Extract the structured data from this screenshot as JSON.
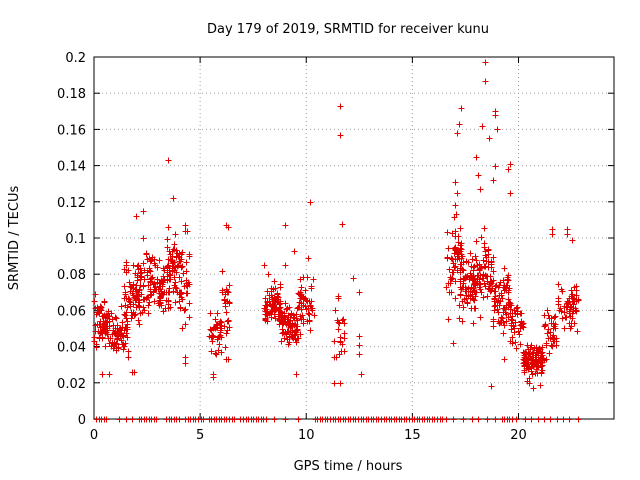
{
  "chart_data": {
    "type": "scatter",
    "title": "Day 179 of 2019, SRMTID for receiver kunu",
    "xlabel": "GPS time / hours",
    "ylabel": "SRMTID / TECUs",
    "xlim": [
      0,
      24.5
    ],
    "ylim": [
      0,
      0.2
    ],
    "xticks": [
      0,
      5,
      10,
      15,
      20
    ],
    "xtick_labels": [
      "0",
      "5",
      "10",
      "15",
      "20"
    ],
    "yticks": [
      0,
      0.02,
      0.04,
      0.06,
      0.08,
      0.1,
      0.12,
      0.14,
      0.16,
      0.18,
      0.2
    ],
    "ytick_labels": [
      "0",
      "0.02",
      "0.04",
      "0.06",
      "0.08",
      "0.1",
      "0.12",
      "0.14",
      "0.16",
      "0.18",
      "0.2"
    ],
    "grid": true,
    "marker": "+",
    "color": "#e00000",
    "series": [
      {
        "name": "SRMTID",
        "clusters": [
          {
            "x": [
              0.0,
              0.8
            ],
            "y": [
              0.035,
              0.07
            ],
            "n": 70
          },
          {
            "x": [
              0.8,
              1.6
            ],
            "y": [
              0.03,
              0.065
            ],
            "n": 60
          },
          {
            "x": [
              1.4,
              2.2
            ],
            "y": [
              0.04,
              0.09
            ],
            "n": 60
          },
          {
            "x": [
              2.0,
              2.8
            ],
            "y": [
              0.05,
              0.1
            ],
            "n": 60
          },
          {
            "x": [
              2.8,
              3.6
            ],
            "y": [
              0.05,
              0.1
            ],
            "n": 60
          },
          {
            "x": [
              3.4,
              4.2
            ],
            "y": [
              0.06,
              0.105
            ],
            "n": 60
          },
          {
            "x": [
              4.0,
              4.6
            ],
            "y": [
              0.04,
              0.1
            ],
            "n": 30
          },
          {
            "x": [
              5.4,
              6.0
            ],
            "y": [
              0.03,
              0.065
            ],
            "n": 40
          },
          {
            "x": [
              6.0,
              6.4
            ],
            "y": [
              0.03,
              0.09
            ],
            "n": 25
          },
          {
            "x": [
              8.0,
              8.8
            ],
            "y": [
              0.045,
              0.08
            ],
            "n": 80
          },
          {
            "x": [
              8.8,
              9.6
            ],
            "y": [
              0.035,
              0.07
            ],
            "n": 80
          },
          {
            "x": [
              9.6,
              10.4
            ],
            "y": [
              0.04,
              0.085
            ],
            "n": 50
          },
          {
            "x": [
              11.3,
              11.8
            ],
            "y": [
              0.025,
              0.065
            ],
            "n": 20
          },
          {
            "x": [
              16.6,
              17.4
            ],
            "y": [
              0.06,
              0.12
            ],
            "n": 60
          },
          {
            "x": [
              17.2,
              18.0
            ],
            "y": [
              0.045,
              0.1
            ],
            "n": 70
          },
          {
            "x": [
              17.8,
              18.8
            ],
            "y": [
              0.05,
              0.11
            ],
            "n": 80
          },
          {
            "x": [
              18.8,
              19.6
            ],
            "y": [
              0.045,
              0.085
            ],
            "n": 70
          },
          {
            "x": [
              19.6,
              20.2
            ],
            "y": [
              0.035,
              0.07
            ],
            "n": 40
          },
          {
            "x": [
              20.2,
              21.2
            ],
            "y": [
              0.02,
              0.045
            ],
            "n": 110
          },
          {
            "x": [
              21.2,
              21.8
            ],
            "y": [
              0.03,
              0.065
            ],
            "n": 40
          },
          {
            "x": [
              21.8,
              22.8
            ],
            "y": [
              0.045,
              0.08
            ],
            "n": 60
          }
        ],
        "points": [
          {
            "x": 0.0,
            "y": 0.065
          },
          {
            "x": 0.05,
            "y": 0.069
          },
          {
            "x": 0.1,
            "y": 0.04
          },
          {
            "x": 0.4,
            "y": 0.025
          },
          {
            "x": 0.7,
            "y": 0.025
          },
          {
            "x": 1.5,
            "y": 0.081
          },
          {
            "x": 1.5,
            "y": 0.087
          },
          {
            "x": 1.6,
            "y": 0.034
          },
          {
            "x": 1.8,
            "y": 0.026
          },
          {
            "x": 1.9,
            "y": 0.026
          },
          {
            "x": 2.0,
            "y": 0.112
          },
          {
            "x": 2.3,
            "y": 0.115
          },
          {
            "x": 2.3,
            "y": 0.1
          },
          {
            "x": 3.5,
            "y": 0.143
          },
          {
            "x": 3.7,
            "y": 0.122
          },
          {
            "x": 3.5,
            "y": 0.106
          },
          {
            "x": 3.8,
            "y": 0.102
          },
          {
            "x": 4.3,
            "y": 0.107
          },
          {
            "x": 4.3,
            "y": 0.104
          },
          {
            "x": 4.4,
            "y": 0.104
          },
          {
            "x": 4.3,
            "y": 0.034
          },
          {
            "x": 4.3,
            "y": 0.031
          },
          {
            "x": 5.6,
            "y": 0.025
          },
          {
            "x": 5.6,
            "y": 0.023
          },
          {
            "x": 6.2,
            "y": 0.107
          },
          {
            "x": 6.3,
            "y": 0.106
          },
          {
            "x": 6.2,
            "y": 0.033
          },
          {
            "x": 6.3,
            "y": 0.033
          },
          {
            "x": 8.0,
            "y": 0.085
          },
          {
            "x": 8.2,
            "y": 0.08
          },
          {
            "x": 9.0,
            "y": 0.107
          },
          {
            "x": 9.0,
            "y": 0.085
          },
          {
            "x": 9.4,
            "y": 0.093
          },
          {
            "x": 9.5,
            "y": 0.025
          },
          {
            "x": 10.2,
            "y": 0.12
          },
          {
            "x": 10.1,
            "y": 0.089
          },
          {
            "x": 11.6,
            "y": 0.173
          },
          {
            "x": 11.6,
            "y": 0.157
          },
          {
            "x": 11.7,
            "y": 0.108
          },
          {
            "x": 11.5,
            "y": 0.068
          },
          {
            "x": 11.5,
            "y": 0.067
          },
          {
            "x": 11.3,
            "y": 0.02
          },
          {
            "x": 11.4,
            "y": 0.034
          },
          {
            "x": 11.6,
            "y": 0.02
          },
          {
            "x": 12.2,
            "y": 0.078
          },
          {
            "x": 12.5,
            "y": 0.07
          },
          {
            "x": 12.5,
            "y": 0.046
          },
          {
            "x": 12.5,
            "y": 0.041
          },
          {
            "x": 12.5,
            "y": 0.036
          },
          {
            "x": 12.6,
            "y": 0.025
          },
          {
            "x": 16.7,
            "y": 0.055
          },
          {
            "x": 16.9,
            "y": 0.042
          },
          {
            "x": 17.0,
            "y": 0.131
          },
          {
            "x": 17.1,
            "y": 0.125
          },
          {
            "x": 17.1,
            "y": 0.158
          },
          {
            "x": 17.3,
            "y": 0.172
          },
          {
            "x": 17.2,
            "y": 0.163
          },
          {
            "x": 18.0,
            "y": 0.145
          },
          {
            "x": 18.1,
            "y": 0.135
          },
          {
            "x": 18.2,
            "y": 0.127
          },
          {
            "x": 18.3,
            "y": 0.162
          },
          {
            "x": 18.4,
            "y": 0.187
          },
          {
            "x": 18.4,
            "y": 0.197
          },
          {
            "x": 18.6,
            "y": 0.155
          },
          {
            "x": 18.9,
            "y": 0.17
          },
          {
            "x": 18.9,
            "y": 0.168
          },
          {
            "x": 19.0,
            "y": 0.16
          },
          {
            "x": 18.9,
            "y": 0.14
          },
          {
            "x": 18.8,
            "y": 0.132
          },
          {
            "x": 19.6,
            "y": 0.141
          },
          {
            "x": 19.5,
            "y": 0.138
          },
          {
            "x": 19.6,
            "y": 0.125
          },
          {
            "x": 18.7,
            "y": 0.018
          },
          {
            "x": 19.3,
            "y": 0.033
          },
          {
            "x": 21.6,
            "y": 0.105
          },
          {
            "x": 21.6,
            "y": 0.102
          },
          {
            "x": 22.3,
            "y": 0.105
          },
          {
            "x": 22.3,
            "y": 0.102
          },
          {
            "x": 22.5,
            "y": 0.099
          },
          {
            "x": 20.7,
            "y": 0.017
          },
          {
            "x": 20.5,
            "y": 0.02
          },
          {
            "x": 21.0,
            "y": 0.019
          }
        ],
        "zero_segments": [
          [
            0.1,
            0.6
          ],
          [
            2.1,
            3.0
          ],
          [
            3.4,
            3.9
          ],
          [
            4.3,
            5.2
          ],
          [
            5.4,
            6.7
          ],
          [
            6.9,
            8.2
          ],
          [
            10.4,
            16.4
          ],
          [
            19.2,
            19.7
          ]
        ],
        "zero_points": [
          1.2,
          1.5,
          1.8,
          4.0,
          8.5,
          9.0,
          9.6,
          16.6,
          16.9,
          17.4,
          17.8,
          18.1,
          18.5,
          18.9,
          19.9,
          20.3,
          20.6,
          20.9,
          21.2,
          21.5,
          21.8,
          22.1,
          22.4,
          22.8
        ]
      }
    ]
  }
}
